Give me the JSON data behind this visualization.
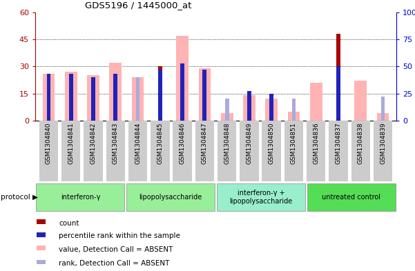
{
  "title": "GDS5196 / 1445000_at",
  "samples": [
    "GSM1304840",
    "GSM1304841",
    "GSM1304842",
    "GSM1304843",
    "GSM1304844",
    "GSM1304845",
    "GSM1304846",
    "GSM1304847",
    "GSM1304848",
    "GSM1304849",
    "GSM1304850",
    "GSM1304851",
    "GSM1304836",
    "GSM1304837",
    "GSM1304838",
    "GSM1304839"
  ],
  "pink_bars": [
    26,
    27,
    25,
    32,
    24,
    0,
    47,
    29,
    4,
    14,
    12,
    5,
    21,
    0,
    22,
    4
  ],
  "red_bars": [
    0,
    0,
    0,
    0,
    0,
    30,
    0,
    0,
    0,
    0,
    0,
    0,
    0,
    48,
    0,
    0
  ],
  "blue_rank_pct": [
    43,
    43,
    40,
    43,
    0,
    47,
    53,
    47,
    0,
    27,
    25,
    0,
    0,
    50,
    0,
    0
  ],
  "ltblue_rank_pct": [
    0,
    0,
    0,
    0,
    40,
    0,
    0,
    0,
    20,
    0,
    22,
    20,
    0,
    0,
    0,
    22
  ],
  "ylim_left": [
    0,
    60
  ],
  "ylim_right": [
    0,
    100
  ],
  "yticks_left": [
    0,
    15,
    30,
    45,
    60
  ],
  "yticks_right": [
    0,
    25,
    50,
    75,
    100
  ],
  "left_tick_labels": [
    "0",
    "15",
    "30",
    "45",
    "60"
  ],
  "right_tick_labels": [
    "0",
    "25",
    "50",
    "75",
    "100%"
  ],
  "pink_color": "#ffb3b3",
  "red_color": "#aa0000",
  "blue_color": "#2222bb",
  "ltblue_color": "#aaaadd",
  "gray_bg": "#cccccc",
  "white_bg": "#ffffff",
  "groups": [
    {
      "label": "interferon-γ",
      "start": 0,
      "end": 4,
      "color": "#99ee99"
    },
    {
      "label": "lipopolysaccharide",
      "start": 4,
      "end": 8,
      "color": "#99ee99"
    },
    {
      "label": "interferon-γ +\nlipopolysaccharide",
      "start": 8,
      "end": 12,
      "color": "#99eecc"
    },
    {
      "label": "untreated control",
      "start": 12,
      "end": 16,
      "color": "#55dd55"
    }
  ],
  "legend_items": [
    {
      "color": "#aa0000",
      "label": "count"
    },
    {
      "color": "#2222bb",
      "label": "percentile rank within the sample"
    },
    {
      "color": "#ffb3b3",
      "label": "value, Detection Call = ABSENT"
    },
    {
      "color": "#aaaadd",
      "label": "rank, Detection Call = ABSENT"
    }
  ]
}
